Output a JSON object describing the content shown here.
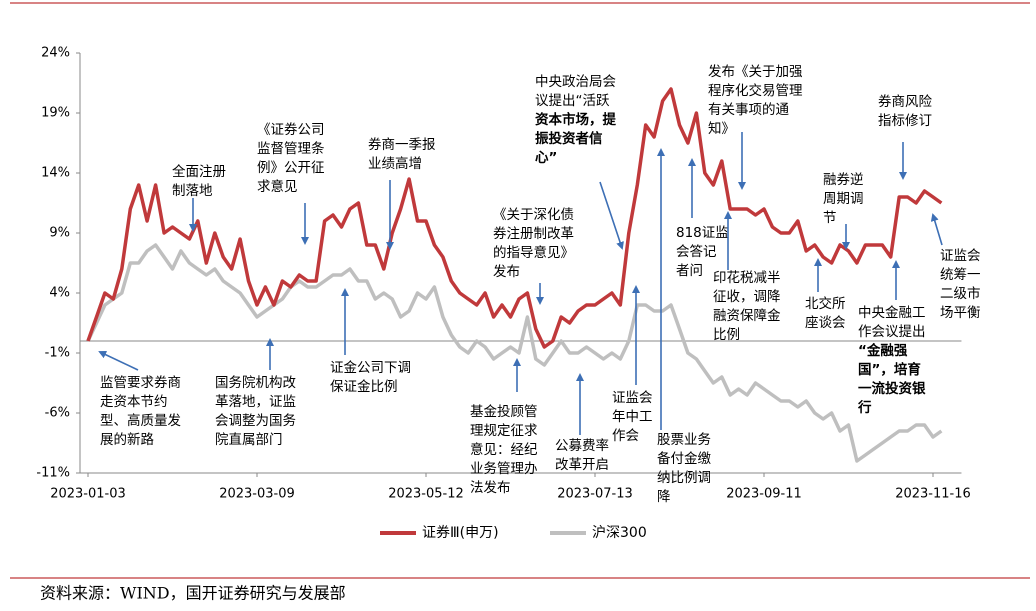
{
  "chart_data": {
    "type": "line",
    "categories": [
      "2023-01-03",
      null,
      null,
      null,
      null,
      null,
      null,
      null,
      null,
      null,
      null,
      null,
      null,
      null,
      null,
      null,
      null,
      null,
      null,
      null,
      "2023-03-09",
      null,
      null,
      null,
      null,
      null,
      null,
      null,
      null,
      null,
      null,
      null,
      null,
      null,
      null,
      null,
      null,
      null,
      null,
      null,
      "2023-05-12",
      null,
      null,
      null,
      null,
      null,
      null,
      null,
      null,
      null,
      null,
      null,
      null,
      null,
      null,
      null,
      null,
      null,
      null,
      null,
      "2023-07-13",
      null,
      null,
      null,
      null,
      null,
      null,
      null,
      null,
      null,
      null,
      null,
      null,
      null,
      null,
      null,
      null,
      null,
      null,
      null,
      "2023-09-11",
      null,
      null,
      null,
      null,
      null,
      null,
      null,
      null,
      null,
      null,
      null,
      null,
      null,
      null,
      null,
      null,
      null,
      null,
      null,
      "2023-11-16",
      null
    ],
    "series": [
      {
        "name": "证券Ⅲ(申万)",
        "color": "#c0393b",
        "values": [
          0,
          2,
          4,
          3.5,
          6,
          11,
          13,
          10,
          13,
          9,
          9.5,
          9,
          8.5,
          10,
          6.5,
          9,
          7,
          6,
          8.5,
          5,
          3,
          4.5,
          3,
          5,
          4.5,
          5.5,
          5,
          5,
          10,
          10.5,
          9.5,
          11,
          11.5,
          8,
          8,
          6,
          9,
          11,
          13.5,
          10,
          10,
          8,
          7,
          5,
          4,
          3.5,
          3,
          4,
          2,
          3,
          2,
          3.5,
          4,
          1,
          -0.5,
          0,
          2,
          1.5,
          2.5,
          3,
          3,
          3.5,
          4,
          3,
          9,
          13,
          18,
          17,
          20,
          21,
          18,
          16.5,
          19,
          14,
          13,
          15,
          11,
          11,
          11,
          10.5,
          11,
          9.5,
          9,
          9,
          10,
          7.5,
          8,
          7,
          6.5,
          8,
          7.5,
          6.5,
          8,
          8,
          8,
          7,
          12,
          12,
          11.5,
          12.5,
          12,
          11.5
        ]
      },
      {
        "name": "沪深300",
        "color": "#bfbfbf",
        "values": [
          0,
          1.5,
          3,
          3.5,
          4,
          6.5,
          6.5,
          7.5,
          8,
          7,
          6,
          7.5,
          6.5,
          6,
          5.5,
          6,
          5,
          4.5,
          4,
          3,
          2,
          2.5,
          3,
          3.5,
          4.5,
          5,
          4.5,
          4.5,
          5,
          5.5,
          5.5,
          6,
          5,
          5,
          3.5,
          4,
          3.5,
          2,
          2.5,
          4,
          3.5,
          4.5,
          2,
          0.5,
          -0.5,
          -1,
          0,
          -0.5,
          -1.5,
          -1,
          -0.5,
          -1,
          2,
          -1.5,
          -2,
          -1,
          0,
          -1,
          -1,
          -0.5,
          -1,
          -1.5,
          -1,
          -1.5,
          0,
          3,
          3,
          2.5,
          2.5,
          3,
          1,
          -1,
          -1.5,
          -2.5,
          -3.5,
          -3,
          -4.5,
          -4,
          -4.5,
          -3.5,
          -4,
          -4.5,
          -5,
          -5,
          -5.5,
          -5,
          -6,
          -6.5,
          -6,
          -7.5,
          -7,
          -10,
          -9.5,
          -9,
          -8.5,
          -8,
          -7.5,
          -7.5,
          -7,
          -7,
          -8,
          -7.5
        ]
      }
    ],
    "ylim": [
      -11,
      24
    ],
    "yticks": [
      {
        "value": 24,
        "label": "24%"
      },
      {
        "value": 19,
        "label": "19%"
      },
      {
        "value": 14,
        "label": "14%"
      },
      {
        "value": 9,
        "label": "9%"
      },
      {
        "value": 4,
        "label": "4%"
      },
      {
        "value": -1,
        "label": "-1%"
      },
      {
        "value": -6,
        "label": "-6%"
      },
      {
        "value": -11,
        "label": "-11%"
      }
    ],
    "legend": "bottom",
    "annotations": [
      {
        "lines": [
          "监管要求券商",
          "走资本节约",
          "型、高质量发",
          "展的新路"
        ]
      },
      {
        "lines": [
          "全面注册",
          "制落地"
        ]
      },
      {
        "lines": [
          "《证券公司",
          "监督管理条",
          "例》公开征",
          "求意见"
        ]
      },
      {
        "lines": [
          "券商一季报",
          "业绩高增"
        ]
      },
      {
        "lines": [
          "《关于深化债",
          "券注册制改革",
          "的指导意见》",
          "发布"
        ]
      },
      {
        "lines": [
          "中央政治局会",
          "议提出“活跃",
          "资本市场，提",
          "振投资者信",
          "心”"
        ],
        "bold_from": 2
      },
      {
        "lines": [
          "发布《关于加强",
          "程序化交易管理",
          "有关事项的通",
          "知》"
        ]
      },
      {
        "lines": [
          "券商风险",
          "指标修订"
        ]
      },
      {
        "lines": [
          "融券逆",
          "周期调",
          "节"
        ]
      },
      {
        "lines": [
          "818证监",
          "会答记",
          "者问"
        ]
      },
      {
        "lines": [
          "印花税减半",
          "征收，调降",
          "融资保障金",
          "比例"
        ]
      },
      {
        "lines": [
          "北交所",
          "座谈会"
        ]
      },
      {
        "lines": [
          "中央金融工",
          "作会议提出",
          "“金融强",
          "国”，培育",
          "一流投资银",
          "行"
        ],
        "bold_from": 2
      },
      {
        "lines": [
          "证监会",
          "统筹一",
          "二级市",
          "场平衡"
        ]
      },
      {
        "lines": [
          "证金公司下调",
          "保证金比例"
        ]
      },
      {
        "lines": [
          "国务院机构改",
          "革落地，证监",
          "会调整为国务",
          "院直属部门"
        ]
      },
      {
        "lines": [
          "基金投顾管",
          "理规定征求",
          "意见：经纪",
          "业务管理办",
          "法发布"
        ]
      },
      {
        "lines": [
          "公募费率",
          "改革开启"
        ]
      },
      {
        "lines": [
          "证监会",
          "年中工",
          "作会"
        ]
      },
      {
        "lines": [
          "股票业务",
          "备付金缴",
          "纳比例调",
          "降"
        ]
      }
    ],
    "source": "资料来源：WIND，国开证券研究与发展部"
  }
}
